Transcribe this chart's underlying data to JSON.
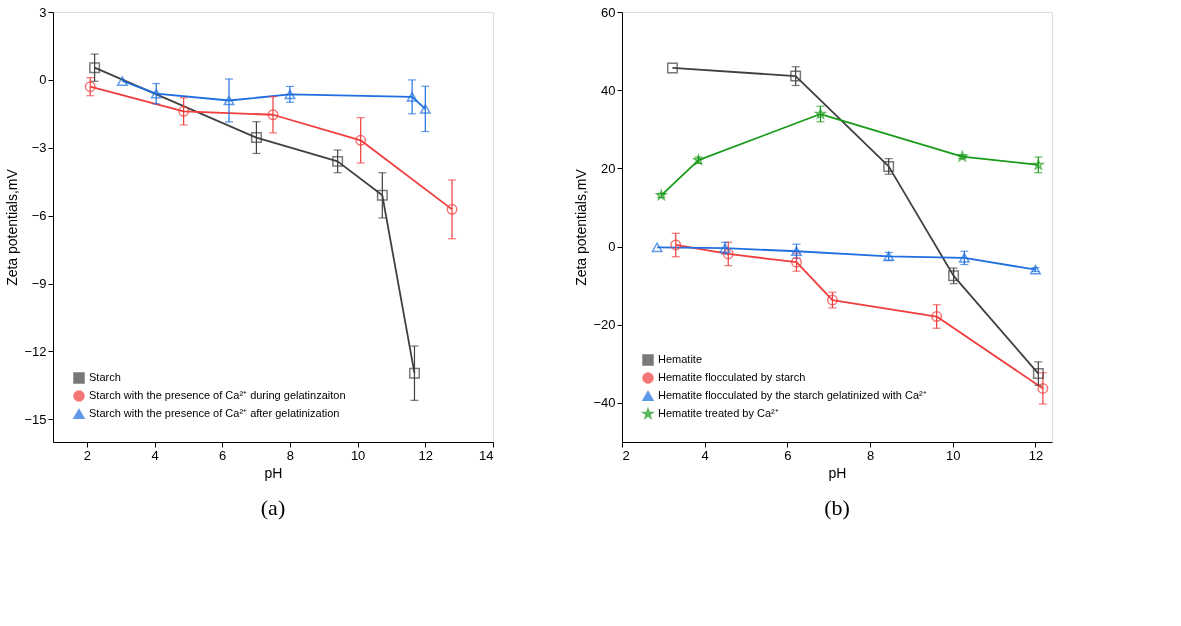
{
  "chart_data": [
    {
      "type": "line",
      "title": "(a)",
      "xlabel": "pH",
      "ylabel": "Zeta potentials,mV",
      "xlim": [
        1,
        14
      ],
      "xticks": [
        2,
        4,
        6,
        8,
        10,
        12,
        14
      ],
      "ylim": [
        -16,
        3
      ],
      "yticks": [
        -15,
        -12,
        -9,
        -6,
        -3,
        0,
        3
      ],
      "grid": false,
      "legend": "bottom left",
      "series": [
        {
          "name": "Starch",
          "color": "#404040",
          "marker": "square",
          "x": [
            2.23,
            7.01,
            9.41,
            10.73,
            11.68
          ],
          "values": [
            0.54,
            -2.55,
            -3.6,
            -5.1,
            -12.96
          ],
          "errors": [
            0.6,
            0.7,
            0.5,
            1.0,
            1.2
          ]
        },
        {
          "name": "Starch with the presence of Ca²⁺ during gelatinzaiton",
          "color": "#f03c3c",
          "marker": "circle",
          "x": [
            2.1,
            4.86,
            7.5,
            10.09,
            12.79
          ],
          "values": [
            -0.3,
            -1.39,
            -1.54,
            -2.67,
            -5.72
          ],
          "errors": [
            0.4,
            0.6,
            0.8,
            1.0,
            1.3
          ]
        },
        {
          "name": "Starch with the presence of Ca²⁺ after gelatinization",
          "color": "#1f6fe0",
          "marker": "triangle",
          "x": [
            3.05,
            4.05,
            6.2,
            8.0,
            11.61,
            12.0
          ],
          "values": [
            -0.05,
            -0.61,
            -0.91,
            -0.64,
            -0.75,
            -1.28
          ],
          "errors": [
            null,
            0.45,
            0.95,
            0.35,
            0.75,
            1.0
          ]
        }
      ]
    },
    {
      "type": "line",
      "title": "(b)",
      "xlabel": "pH",
      "ylabel": "Zeta potentials,mV",
      "xlim": [
        2,
        12.4
      ],
      "xticks": [
        2,
        4,
        6,
        8,
        10,
        12
      ],
      "ylim": [
        -50,
        60
      ],
      "yticks": [
        -40,
        -20,
        0,
        20,
        40,
        60
      ],
      "grid": false,
      "legend": "bottom left",
      "series": [
        {
          "name": "Hematite",
          "color": "#404040",
          "marker": "square",
          "x": [
            3.22,
            6.2,
            8.45,
            10.02,
            12.07
          ],
          "values": [
            45.7,
            43.6,
            20.5,
            -7.5,
            -32.5
          ],
          "errors": [
            null,
            2.4,
            2,
            2,
            3
          ]
        },
        {
          "name": "Hematite flocculated by starch",
          "color": "#f03c3c",
          "marker": "circle",
          "x": [
            3.3,
            4.57,
            6.22,
            7.09,
            9.61,
            12.18
          ],
          "values": [
            0.4,
            -1.9,
            -4,
            -13.7,
            -17.9,
            -36.3
          ],
          "errors": [
            3,
            3,
            2.3,
            2,
            3,
            4
          ]
        },
        {
          "name": "Hematite flocculated by the starch gelatinized with Ca²⁺",
          "color": "#1f6fe0",
          "marker": "triangle",
          "x": [
            2.85,
            4.49,
            6.22,
            8.45,
            10.28,
            12.0
          ],
          "values": [
            -0.2,
            -0.4,
            -1.2,
            -2.5,
            -2.9,
            -5.9
          ],
          "errors": [
            null,
            1.5,
            1.8,
            1,
            1.7,
            0.5
          ]
        },
        {
          "name": "Hematite treated by Ca²⁺",
          "color": "#1a9a1a",
          "marker": "star",
          "x": [
            2.95,
            3.85,
            6.8,
            10.23,
            12.07
          ],
          "values": [
            13.1,
            22.1,
            33.9,
            23.0,
            20.9
          ],
          "errors": [
            0.5,
            0.8,
            2,
            0.5,
            2
          ]
        }
      ]
    }
  ]
}
